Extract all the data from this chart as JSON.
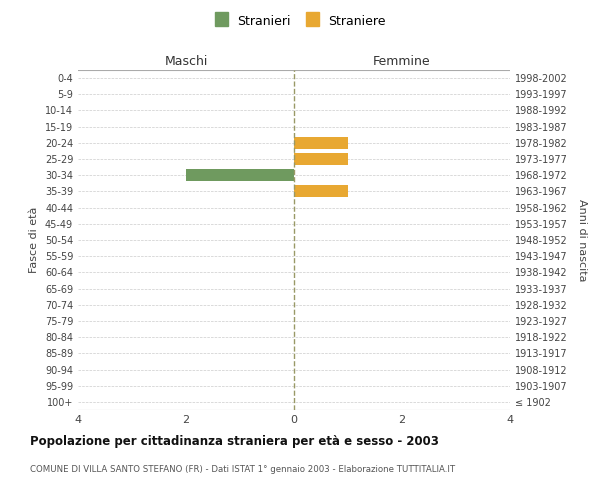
{
  "age_groups": [
    "100+",
    "95-99",
    "90-94",
    "85-89",
    "80-84",
    "75-79",
    "70-74",
    "65-69",
    "60-64",
    "55-59",
    "50-54",
    "45-49",
    "40-44",
    "35-39",
    "30-34",
    "25-29",
    "20-24",
    "15-19",
    "10-14",
    "5-9",
    "0-4"
  ],
  "birth_years": [
    "≤ 1902",
    "1903-1907",
    "1908-1912",
    "1913-1917",
    "1918-1922",
    "1923-1927",
    "1928-1932",
    "1933-1937",
    "1938-1942",
    "1943-1947",
    "1948-1952",
    "1953-1957",
    "1958-1962",
    "1963-1967",
    "1968-1972",
    "1973-1977",
    "1978-1982",
    "1983-1987",
    "1988-1992",
    "1993-1997",
    "1998-2002"
  ],
  "males": [
    0,
    0,
    0,
    0,
    0,
    0,
    0,
    0,
    0,
    0,
    0,
    0,
    0,
    0,
    2,
    0,
    0,
    0,
    0,
    0,
    0
  ],
  "females": [
    0,
    0,
    0,
    0,
    0,
    0,
    0,
    0,
    0,
    0,
    0,
    0,
    0,
    1,
    0,
    1,
    1,
    0,
    0,
    0,
    0
  ],
  "male_color": "#6f9a5f",
  "female_color": "#e8a832",
  "xlim": 4,
  "xlabel_left": "Maschi",
  "xlabel_right": "Femmine",
  "ylabel_left": "Fasce di età",
  "ylabel_right": "Anni di nascita",
  "legend_male": "Stranieri",
  "legend_female": "Straniere",
  "title": "Popolazione per cittadinanza straniera per età e sesso - 2003",
  "subtitle": "COMUNE DI VILLA SANTO STEFANO (FR) - Dati ISTAT 1° gennaio 2003 - Elaborazione TUTTITALIA.IT",
  "bg_color": "#ffffff",
  "grid_color": "#cccccc",
  "bar_height": 0.75
}
